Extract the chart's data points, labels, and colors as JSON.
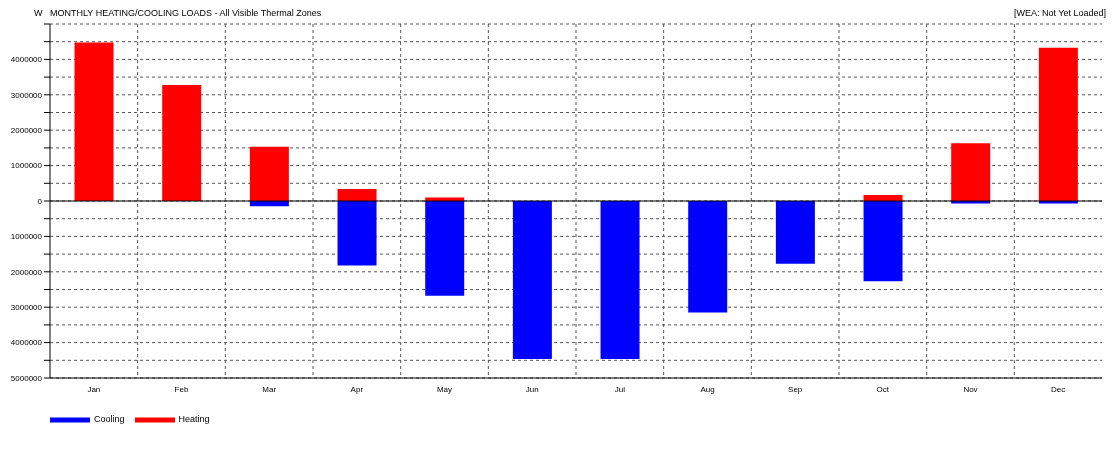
{
  "chart_data": {
    "type": "bar",
    "title": "MONTHLY HEATING/COOLING LOADS - All Visible Thermal Zones",
    "ylabel": "W",
    "annotations": [
      "[WEA: Not Yet Loaded]"
    ],
    "categories": [
      "Jan",
      "Feb",
      "Mar",
      "Apr",
      "May",
      "Jun",
      "Jul",
      "Aug",
      "Sep",
      "Oct",
      "Nov",
      "Dec"
    ],
    "stacked": true,
    "series": [
      {
        "name": "Heating",
        "color": "#ff0000",
        "values": [
          4480000,
          3280000,
          1530000,
          340000,
          100000,
          0,
          0,
          0,
          0,
          170000,
          1630000,
          4330000
        ]
      },
      {
        "name": "Cooling",
        "color": "#0000ff",
        "values": [
          0,
          0,
          -150000,
          -1820000,
          -2680000,
          -4460000,
          -4460000,
          -3150000,
          -1770000,
          -2270000,
          -70000,
          -70000
        ]
      }
    ],
    "ylim": [
      -5000000,
      5000000
    ],
    "yticks": [
      {
        "value": -5000000,
        "label": "5000000"
      },
      {
        "value": -4500000,
        "label": null
      },
      {
        "value": -4000000,
        "label": "4000000"
      },
      {
        "value": -3500000,
        "label": null
      },
      {
        "value": -3000000,
        "label": "3000000"
      },
      {
        "value": -2500000,
        "label": null
      },
      {
        "value": -2000000,
        "label": "2000000"
      },
      {
        "value": -1500000,
        "label": null
      },
      {
        "value": -1000000,
        "label": "1000000"
      },
      {
        "value": -500000,
        "label": null
      },
      0,
      {
        "value": 500000,
        "label": null
      },
      1000000,
      {
        "value": 1500000,
        "label": null
      },
      2000000,
      {
        "value": 2500000,
        "label": null
      },
      3000000,
      {
        "value": 3500000,
        "label": null
      },
      4000000,
      {
        "value": 4500000,
        "label": null
      },
      {
        "value": 5000000,
        "label": null
      }
    ],
    "grid": true,
    "legend": "bottom"
  }
}
